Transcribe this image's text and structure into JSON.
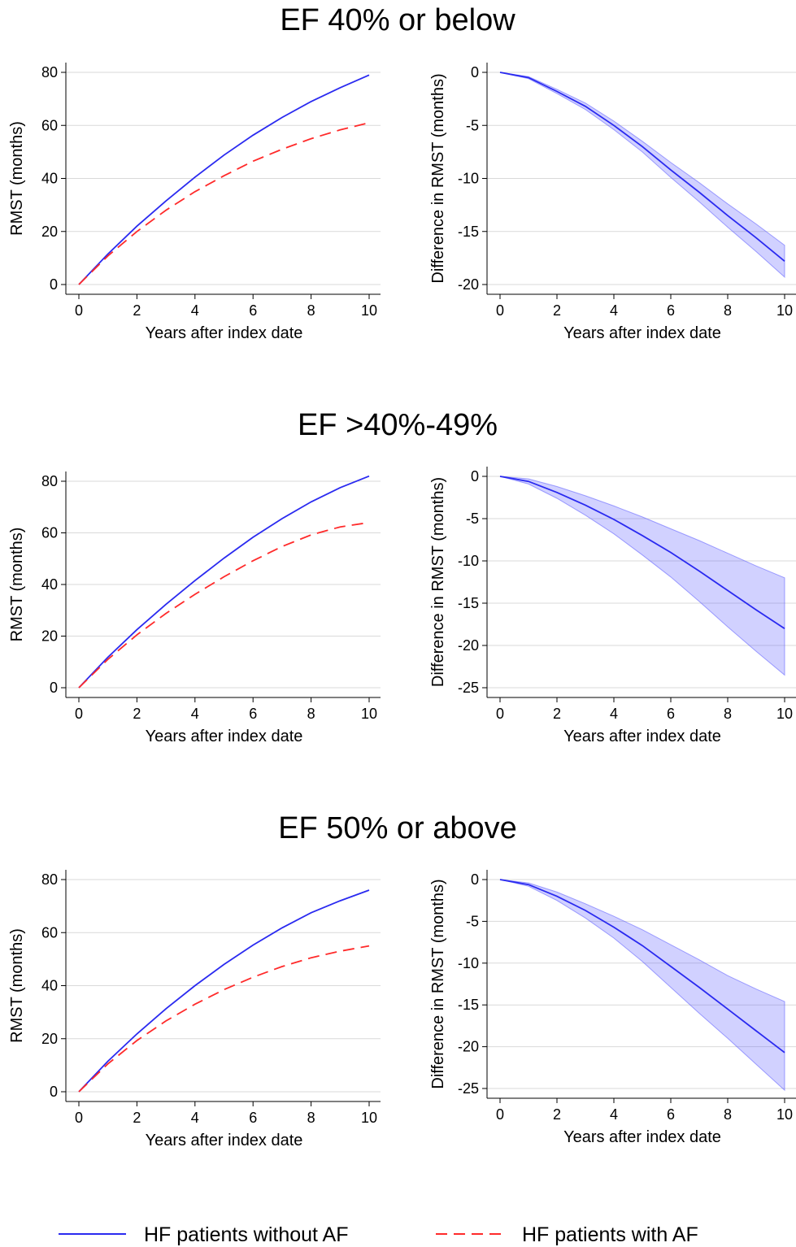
{
  "legend": [
    {
      "label": "HF patients without AF",
      "color": "#2a2af0",
      "dash": "solid"
    },
    {
      "label": "HF patients with AF",
      "color": "#ff2a2a",
      "dash": "dashed"
    }
  ],
  "groups": [
    {
      "title": "EF 40% or below"
    },
    {
      "title": "EF >40%-49%"
    },
    {
      "title": "EF 50% or above"
    }
  ],
  "chart_data": [
    {
      "type": "line",
      "group": "EF 40% or below",
      "xlabel": "Years after index date",
      "ylabel": "RMST (months)",
      "xlim": [
        0,
        10
      ],
      "ylim": [
        0,
        80
      ],
      "xticks": [
        0,
        2,
        4,
        6,
        8,
        10
      ],
      "yticks": [
        0,
        20,
        40,
        60,
        80
      ],
      "grid": true,
      "x": [
        0,
        1,
        2,
        3,
        4,
        5,
        6,
        7,
        8,
        9,
        10
      ],
      "series": [
        {
          "name": "HF patients without AF",
          "color": "#2a2af0",
          "dash": "solid",
          "values": [
            0,
            11.5,
            22,
            31.5,
            40.5,
            48.8,
            56.3,
            63,
            69,
            74.2,
            79
          ]
        },
        {
          "name": "HF patients with AF",
          "color": "#ff2a2a",
          "dash": "dashed",
          "values": [
            0,
            10.8,
            20,
            28,
            35,
            41,
            46.5,
            51,
            55,
            58.3,
            61
          ]
        }
      ]
    },
    {
      "type": "line",
      "group": "EF 40% or below",
      "xlabel": "Years after index date",
      "ylabel": "Difference in RMST (months)",
      "xlim": [
        0,
        10
      ],
      "ylim": [
        -20,
        0
      ],
      "xticks": [
        0,
        2,
        4,
        6,
        8,
        10
      ],
      "yticks": [
        0,
        -5,
        -10,
        -15,
        -20
      ],
      "grid": true,
      "x": [
        0,
        1,
        2,
        3,
        4,
        5,
        6,
        7,
        8,
        9,
        10
      ],
      "series": [
        {
          "name": "",
          "color": "#2a2af0",
          "dash": "solid",
          "values": [
            0,
            -0.5,
            -1.8,
            -3.2,
            -5,
            -7,
            -9.2,
            -11.3,
            -13.5,
            -15.6,
            -17.8
          ],
          "lower": [
            0,
            -0.6,
            -2,
            -3.5,
            -5.4,
            -7.5,
            -9.9,
            -12.2,
            -14.6,
            -16.9,
            -19.3
          ],
          "upper": [
            0,
            -0.4,
            -1.6,
            -2.9,
            -4.6,
            -6.5,
            -8.5,
            -10.4,
            -12.4,
            -14.3,
            -16.3
          ]
        }
      ]
    },
    {
      "type": "line",
      "group": "EF >40%-49%",
      "xlabel": "Years after index date",
      "ylabel": "RMST (months)",
      "xlim": [
        0,
        10
      ],
      "ylim": [
        0,
        80
      ],
      "xticks": [
        0,
        2,
        4,
        6,
        8,
        10
      ],
      "yticks": [
        0,
        20,
        40,
        60,
        80
      ],
      "grid": true,
      "x": [
        0,
        1,
        2,
        3,
        4,
        5,
        6,
        7,
        8,
        9,
        10
      ],
      "series": [
        {
          "name": "HF patients without AF",
          "color": "#2a2af0",
          "dash": "solid",
          "values": [
            0,
            11.8,
            22.5,
            32.3,
            41.5,
            50.2,
            58.3,
            65.5,
            72,
            77.5,
            82
          ]
        },
        {
          "name": "HF patients with AF",
          "color": "#ff2a2a",
          "dash": "dashed",
          "values": [
            0,
            11,
            20.5,
            28.8,
            36.2,
            43,
            49.2,
            54.7,
            59.2,
            62.3,
            64
          ]
        }
      ]
    },
    {
      "type": "line",
      "group": "EF >40%-49%",
      "xlabel": "Years after index date",
      "ylabel": "Difference in RMST (months)",
      "xlim": [
        0,
        10
      ],
      "ylim": [
        -25,
        0
      ],
      "xticks": [
        0,
        2,
        4,
        6,
        8,
        10
      ],
      "yticks": [
        0,
        -5,
        -10,
        -15,
        -20,
        -25
      ],
      "grid": true,
      "x": [
        0,
        1,
        2,
        3,
        4,
        5,
        6,
        7,
        8,
        9,
        10
      ],
      "series": [
        {
          "name": "",
          "color": "#2a2af0",
          "dash": "solid",
          "values": [
            0,
            -0.6,
            -1.9,
            -3.4,
            -5.1,
            -7,
            -9,
            -11.2,
            -13.5,
            -15.8,
            -18
          ],
          "lower": [
            0,
            -0.9,
            -2.6,
            -4.6,
            -6.8,
            -9.3,
            -11.9,
            -14.8,
            -17.8,
            -20.7,
            -23.5
          ],
          "upper": [
            0,
            -0.3,
            -1.2,
            -2.3,
            -3.5,
            -4.8,
            -6.2,
            -7.6,
            -9.1,
            -10.6,
            -12
          ]
        }
      ]
    },
    {
      "type": "line",
      "group": "EF 50% or above",
      "xlabel": "Years after index date",
      "ylabel": "RMST (months)",
      "xlim": [
        0,
        10
      ],
      "ylim": [
        0,
        80
      ],
      "xticks": [
        0,
        2,
        4,
        6,
        8,
        10
      ],
      "yticks": [
        0,
        20,
        40,
        60,
        80
      ],
      "grid": true,
      "x": [
        0,
        1,
        2,
        3,
        4,
        5,
        6,
        7,
        8,
        9,
        10
      ],
      "series": [
        {
          "name": "HF patients without AF",
          "color": "#2a2af0",
          "dash": "solid",
          "values": [
            0,
            11.5,
            21.8,
            31.3,
            40,
            48,
            55.3,
            61.8,
            67.5,
            72,
            76
          ]
        },
        {
          "name": "HF patients with AF",
          "color": "#ff2a2a",
          "dash": "dashed",
          "values": [
            0,
            10.5,
            19.3,
            26.7,
            33,
            38.5,
            43.2,
            47.2,
            50.5,
            53,
            55
          ]
        }
      ]
    },
    {
      "type": "line",
      "group": "EF 50% or above",
      "xlabel": "Years after index date",
      "ylabel": "Difference in RMST (months)",
      "xlim": [
        0,
        10
      ],
      "ylim": [
        -25,
        0
      ],
      "xticks": [
        0,
        2,
        4,
        6,
        8,
        10
      ],
      "yticks": [
        0,
        -5,
        -10,
        -15,
        -20,
        -25
      ],
      "grid": true,
      "x": [
        0,
        1,
        2,
        3,
        4,
        5,
        6,
        7,
        8,
        9,
        10
      ],
      "series": [
        {
          "name": "",
          "color": "#2a2af0",
          "dash": "solid",
          "values": [
            0,
            -0.6,
            -2,
            -3.7,
            -5.7,
            -7.9,
            -10.4,
            -12.9,
            -15.5,
            -18.1,
            -20.7
          ],
          "lower": [
            0,
            -0.8,
            -2.5,
            -4.6,
            -7,
            -9.8,
            -12.9,
            -16,
            -19,
            -22.1,
            -25.2
          ],
          "upper": [
            0,
            -0.4,
            -1.5,
            -2.9,
            -4.4,
            -6,
            -7.8,
            -9.6,
            -11.5,
            -13.1,
            -14.6
          ]
        }
      ]
    }
  ]
}
